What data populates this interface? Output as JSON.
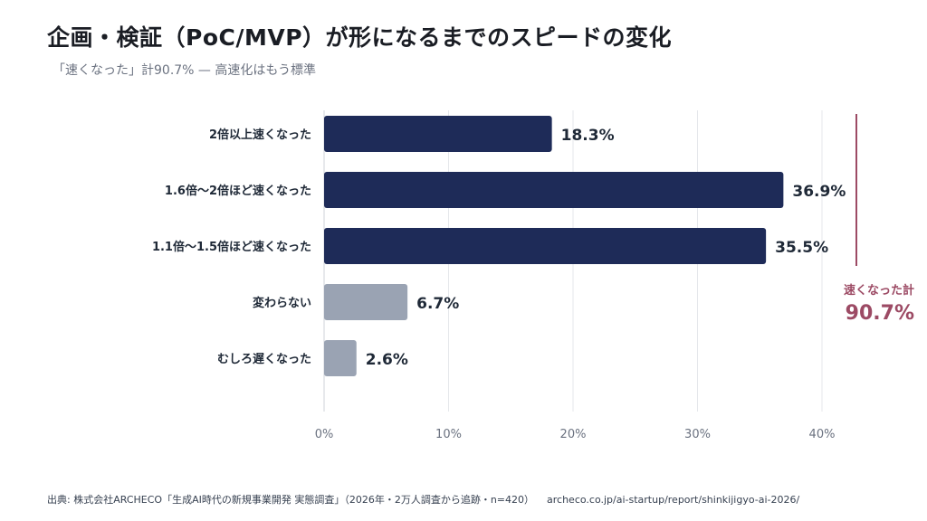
{
  "title": "企画・検証（PoC/MVP）が形になるまでのスピードの変化",
  "subtitle": "「速くなった」計90.7% — 高速化はもう標準",
  "chart_data": {
    "type": "bar",
    "orientation": "horizontal",
    "categories": [
      "2倍以上速くなった",
      "1.6倍〜2倍ほど速くなった",
      "1.1倍〜1.5倍ほど速くなった",
      "変わらない",
      "むしろ遅くなった"
    ],
    "values": [
      18.3,
      36.9,
      35.5,
      6.7,
      2.6
    ],
    "value_labels": [
      "18.3%",
      "36.9%",
      "35.5%",
      "6.7%",
      "2.6%"
    ],
    "bar_colors": [
      "#1e2b58",
      "#1e2b58",
      "#1e2b58",
      "#9aa3b3",
      "#9aa3b3"
    ],
    "xlim": [
      0,
      40
    ],
    "x_ticks": [
      0,
      10,
      20,
      30,
      40
    ],
    "x_tick_labels": [
      "0%",
      "10%",
      "20%",
      "30%",
      "40%"
    ],
    "grid": true,
    "annotation": {
      "label": "速くなった計",
      "value": "90.7%",
      "color": "#9c4a64",
      "spans_categories": [
        0,
        1,
        2
      ]
    }
  },
  "footer": {
    "source": "出典: 株式会社ARCHECO「生成AI時代の新規事業開発 実態調査」（2026年・2万人調査から追跡・n=420）",
    "url": "archeco.co.jp/ai-startup/report/shinkijigyo-ai-2026/"
  }
}
